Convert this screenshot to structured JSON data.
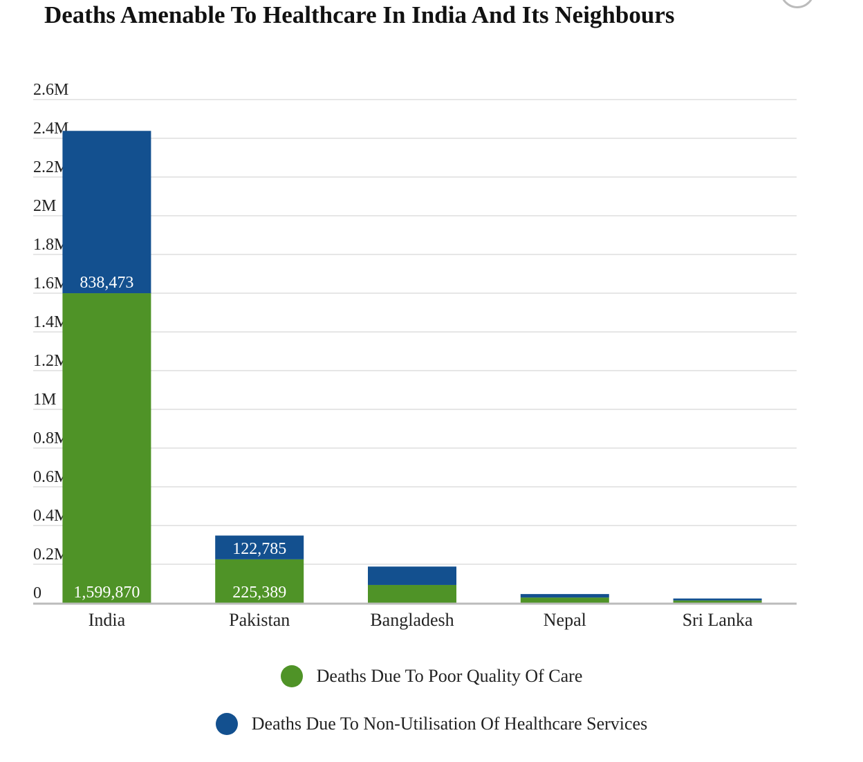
{
  "chart_data": {
    "type": "bar",
    "stacked": true,
    "title": "Deaths Amenable To Healthcare In India And Its Neighbours",
    "categories": [
      "India",
      "Pakistan",
      "Bangladesh",
      "Nepal",
      "Sri Lanka"
    ],
    "series": [
      {
        "name": "Deaths Due To Poor Quality Of Care",
        "color": "#4f9327",
        "values": [
          1599870,
          225389,
          93000,
          28000,
          13000
        ],
        "labels": [
          "1,599,870",
          "225,389",
          "",
          "",
          ""
        ]
      },
      {
        "name": "Deaths Due To Non-Utilisation Of Healthcare Services",
        "color": "#13508f",
        "values": [
          838473,
          122785,
          95000,
          18000,
          10000
        ],
        "labels": [
          "838,473",
          "122,785",
          "",
          "",
          ""
        ]
      }
    ],
    "yticks": [
      {
        "value": 0,
        "label": "0"
      },
      {
        "value": 200000,
        "label": "0.2M"
      },
      {
        "value": 400000,
        "label": "0.4M"
      },
      {
        "value": 600000,
        "label": "0.6M"
      },
      {
        "value": 800000,
        "label": "0.8M"
      },
      {
        "value": 1000000,
        "label": "1M"
      },
      {
        "value": 1200000,
        "label": "1.2M"
      },
      {
        "value": 1400000,
        "label": "1.4M"
      },
      {
        "value": 1600000,
        "label": "1.6M"
      },
      {
        "value": 1800000,
        "label": "1.8M"
      },
      {
        "value": 2000000,
        "label": "2M"
      },
      {
        "value": 2200000,
        "label": "2.2M"
      },
      {
        "value": 2400000,
        "label": "2.4M"
      },
      {
        "value": 2600000,
        "label": "2.6M"
      }
    ],
    "ylim": [
      0,
      2600000
    ],
    "grid": true,
    "legend_position": "bottom"
  }
}
